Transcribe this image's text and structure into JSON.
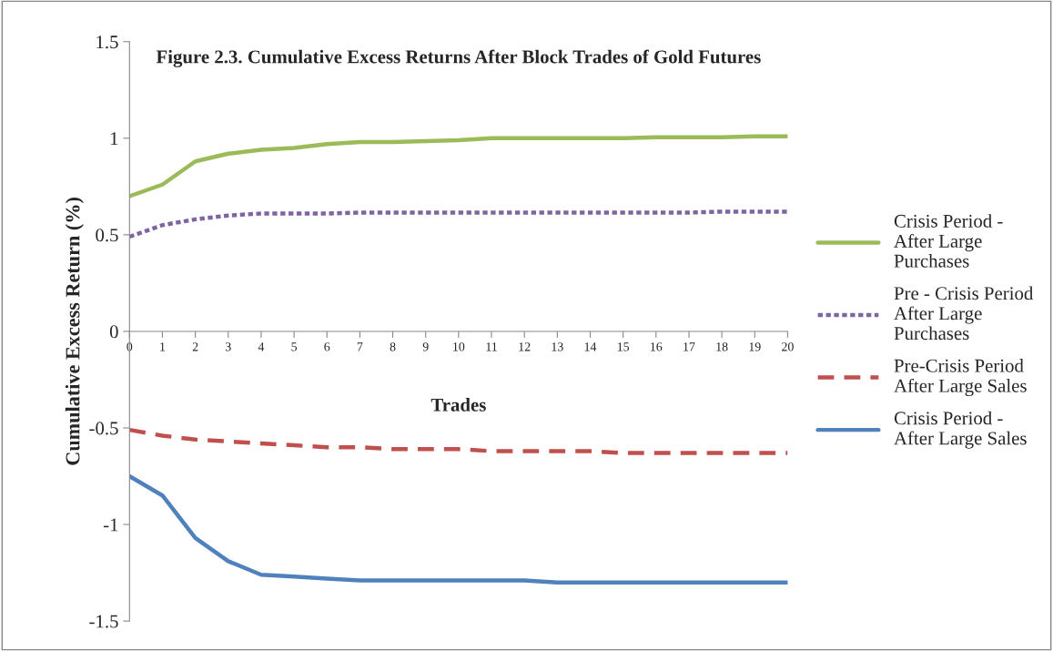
{
  "chart_data": {
    "type": "line",
    "title": "Figure 2.3. Cumulative Excess Returns After Block Trades of Gold Futures",
    "xlabel": "Trades",
    "ylabel": "Cumulative Excess Return (%)",
    "x": [
      0,
      1,
      2,
      3,
      4,
      5,
      6,
      7,
      8,
      9,
      10,
      11,
      12,
      13,
      14,
      15,
      16,
      17,
      18,
      19,
      20
    ],
    "series": [
      {
        "name": "Crisis Period -\nAfter Large\nPurchases",
        "color": "#9bbb59",
        "line_style": "solid",
        "values": [
          0.7,
          0.76,
          0.88,
          0.92,
          0.94,
          0.95,
          0.97,
          0.98,
          0.98,
          0.985,
          0.99,
          1.0,
          1.0,
          1.0,
          1.0,
          1.0,
          1.005,
          1.005,
          1.005,
          1.01,
          1.01
        ]
      },
      {
        "name": "Pre - Crisis Period\nAfter Large\nPurchases",
        "color": "#8064a2",
        "line_style": "dotted",
        "values": [
          0.49,
          0.55,
          0.58,
          0.6,
          0.61,
          0.61,
          0.61,
          0.615,
          0.615,
          0.615,
          0.615,
          0.615,
          0.615,
          0.615,
          0.615,
          0.615,
          0.615,
          0.615,
          0.62,
          0.62,
          0.62
        ]
      },
      {
        "name": "Pre-Crisis Period\nAfter Large Sales",
        "color": "#c0504d",
        "line_style": "dashed",
        "values": [
          -0.51,
          -0.54,
          -0.56,
          -0.57,
          -0.58,
          -0.59,
          -0.6,
          -0.6,
          -0.61,
          -0.61,
          -0.61,
          -0.62,
          -0.62,
          -0.62,
          -0.62,
          -0.63,
          -0.63,
          -0.63,
          -0.63,
          -0.63,
          -0.63
        ]
      },
      {
        "name": "Crisis Period -\nAfter Large Sales",
        "color": "#4f81bd",
        "line_style": "solid",
        "values": [
          -0.75,
          -0.85,
          -1.07,
          -1.19,
          -1.26,
          -1.27,
          -1.28,
          -1.29,
          -1.29,
          -1.29,
          -1.29,
          -1.29,
          -1.29,
          -1.3,
          -1.3,
          -1.3,
          -1.3,
          -1.3,
          -1.3,
          -1.3,
          -1.3
        ]
      }
    ],
    "xlim": [
      0,
      20
    ],
    "xticks": [
      0,
      1,
      2,
      3,
      4,
      5,
      6,
      7,
      8,
      9,
      10,
      11,
      12,
      13,
      14,
      15,
      16,
      17,
      18,
      19,
      20
    ],
    "ylim": [
      -1.5,
      1.5
    ],
    "yticks": [
      {
        "value": -1.5,
        "label": "-1.5"
      },
      {
        "value": -1,
        "label": "-1"
      },
      {
        "value": -0.5,
        "label": "-0.5"
      },
      0,
      0.5,
      1,
      1.5
    ],
    "grid": false,
    "legend": "right",
    "marker": "none"
  }
}
